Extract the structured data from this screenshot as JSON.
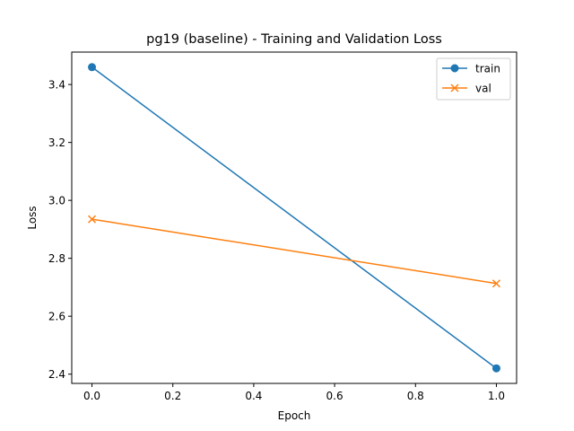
{
  "chart_data": {
    "type": "line",
    "title": "pg19 (baseline) - Training and Validation Loss",
    "xlabel": "Epoch",
    "ylabel": "Loss",
    "xlim": [
      -0.05,
      1.05
    ],
    "ylim": [
      2.368,
      3.512
    ],
    "xticks": [
      0.0,
      0.2,
      0.4,
      0.6,
      0.8,
      1.0
    ],
    "xtick_labels": [
      "0.0",
      "0.2",
      "0.4",
      "0.6",
      "0.8",
      "1.0"
    ],
    "yticks": [
      2.4,
      2.6,
      2.8,
      3.0,
      3.2,
      3.4
    ],
    "ytick_labels": [
      "2.4",
      "2.6",
      "2.8",
      "3.0",
      "3.2",
      "3.4"
    ],
    "grid": false,
    "legend_position": "top-right",
    "series": [
      {
        "name": "train",
        "x": [
          0,
          1
        ],
        "values": [
          3.46,
          2.42
        ],
        "color": "#1f77b4",
        "marker": "circle"
      },
      {
        "name": "val",
        "x": [
          0,
          1
        ],
        "values": [
          2.935,
          2.713
        ],
        "color": "#ff7f0e",
        "marker": "x"
      }
    ]
  }
}
